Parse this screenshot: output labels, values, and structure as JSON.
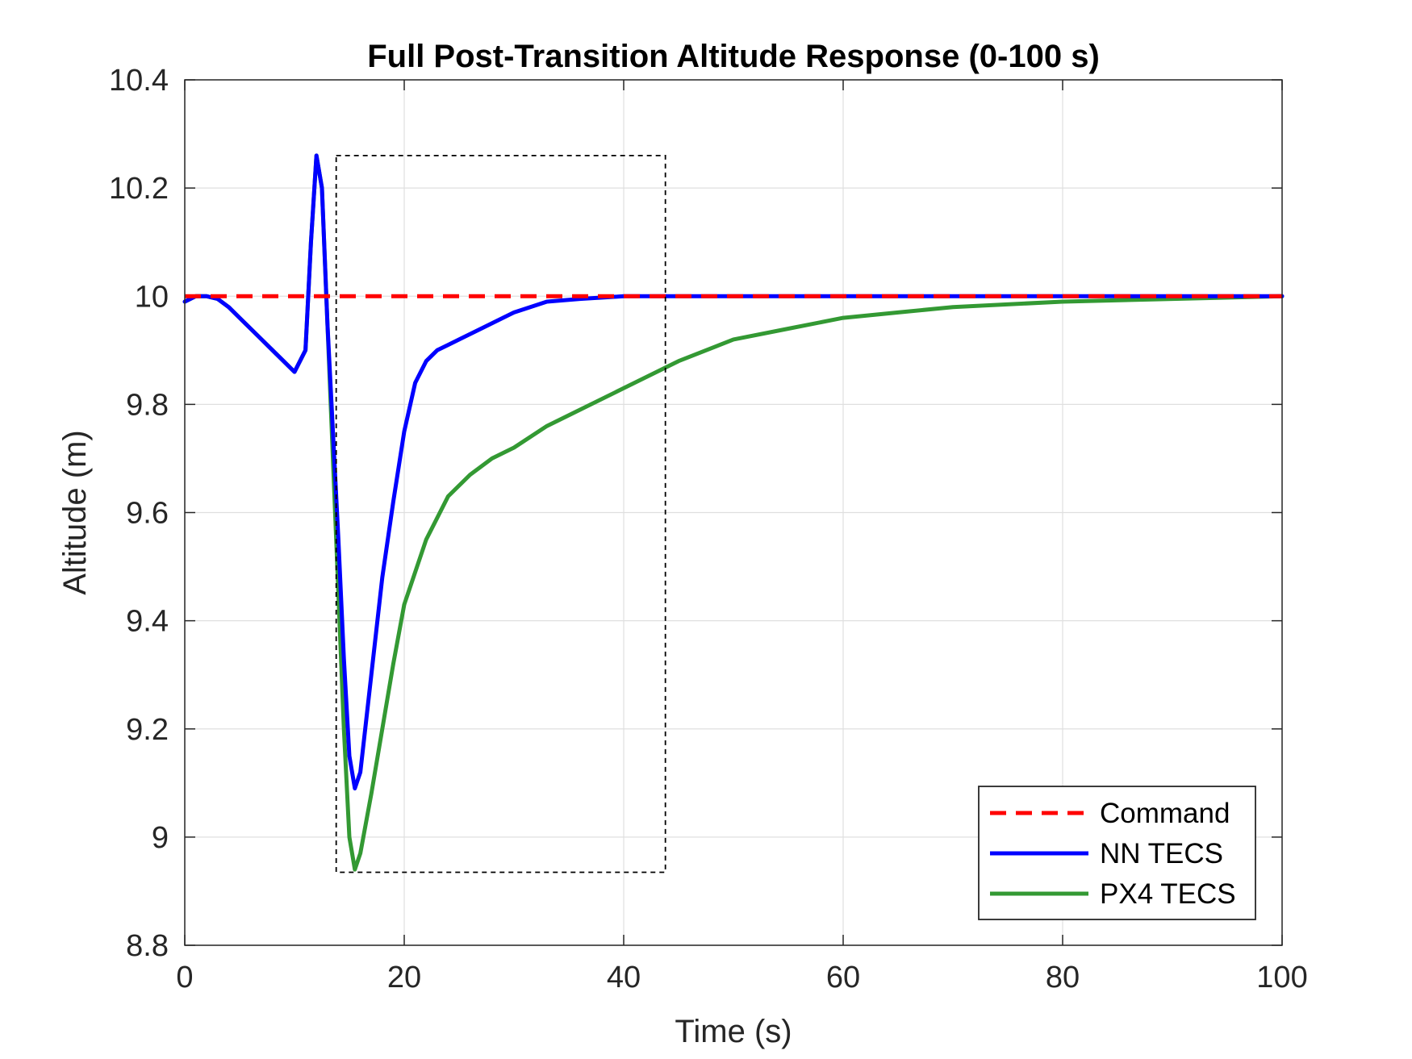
{
  "chart_data": {
    "type": "line",
    "title": "Full Post-Transition Altitude Response (0-100 s)",
    "xlabel": "Time (s)",
    "ylabel": "Altitude (m)",
    "xlim": [
      0,
      100
    ],
    "ylim": [
      8.8,
      10.4
    ],
    "xticks": [
      0,
      20,
      40,
      60,
      80,
      100
    ],
    "yticks": [
      8.8,
      9,
      9.2,
      9.4,
      9.6,
      9.8,
      10,
      10.2,
      10.4
    ],
    "xtick_labels": [
      "0",
      "20",
      "40",
      "60",
      "80",
      "100"
    ],
    "ytick_labels": [
      "8.8",
      "9",
      "9.2",
      "9.4",
      "9.6",
      "9.8",
      "10",
      "10.2",
      "10.4"
    ],
    "grid": true,
    "legend_location": "bottom-right",
    "series": [
      {
        "name": "Command",
        "color": "#ff0000",
        "style": "dashed",
        "x": [
          0,
          100
        ],
        "y": [
          10.0,
          10.0
        ]
      },
      {
        "name": "NN TECS",
        "color": "#0000ff",
        "style": "solid",
        "x": [
          0,
          1,
          2,
          3,
          4,
          5,
          6,
          7,
          8,
          9,
          10,
          11,
          11.5,
          12,
          12.5,
          13,
          13.5,
          14,
          14.5,
          15,
          15.5,
          16,
          17,
          18,
          19,
          20,
          21,
          22,
          23,
          24,
          25,
          27,
          30,
          33,
          36,
          40,
          45,
          50,
          60,
          70,
          80,
          90,
          100
        ],
        "y": [
          9.99,
          10.0,
          10.0,
          9.995,
          9.98,
          9.96,
          9.94,
          9.92,
          9.9,
          9.88,
          9.86,
          9.9,
          10.1,
          10.26,
          10.2,
          9.95,
          9.75,
          9.55,
          9.33,
          9.15,
          9.09,
          9.12,
          9.3,
          9.48,
          9.62,
          9.75,
          9.84,
          9.88,
          9.9,
          9.91,
          9.92,
          9.94,
          9.97,
          9.99,
          9.995,
          10.0,
          10.0,
          10.0,
          10.0,
          10.0,
          10.0,
          10.0,
          10.0
        ]
      },
      {
        "name": "PX4 TECS",
        "color": "#339933",
        "style": "solid",
        "x": [
          0,
          1,
          2,
          3,
          4,
          5,
          6,
          7,
          8,
          9,
          10,
          11,
          11.5,
          12,
          12.5,
          13,
          13.5,
          14,
          14.5,
          15,
          15.5,
          16,
          17,
          18,
          19,
          20,
          22,
          24,
          26,
          28,
          30,
          33,
          36,
          40,
          45,
          50,
          55,
          60,
          65,
          70,
          80,
          90,
          100
        ],
        "y": [
          9.99,
          10.0,
          10.0,
          9.995,
          9.98,
          9.96,
          9.94,
          9.92,
          9.9,
          9.88,
          9.86,
          9.9,
          10.1,
          10.26,
          10.2,
          9.95,
          9.7,
          9.45,
          9.2,
          9.0,
          8.94,
          8.97,
          9.08,
          9.2,
          9.32,
          9.43,
          9.55,
          9.63,
          9.67,
          9.7,
          9.72,
          9.76,
          9.79,
          9.83,
          9.88,
          9.92,
          9.94,
          9.96,
          9.97,
          9.98,
          9.99,
          9.995,
          10.0
        ]
      }
    ],
    "annotations": [
      {
        "type": "dashed-box",
        "x_range": [
          13.8,
          43.8
        ],
        "y_range": [
          8.935,
          10.26
        ]
      }
    ]
  }
}
